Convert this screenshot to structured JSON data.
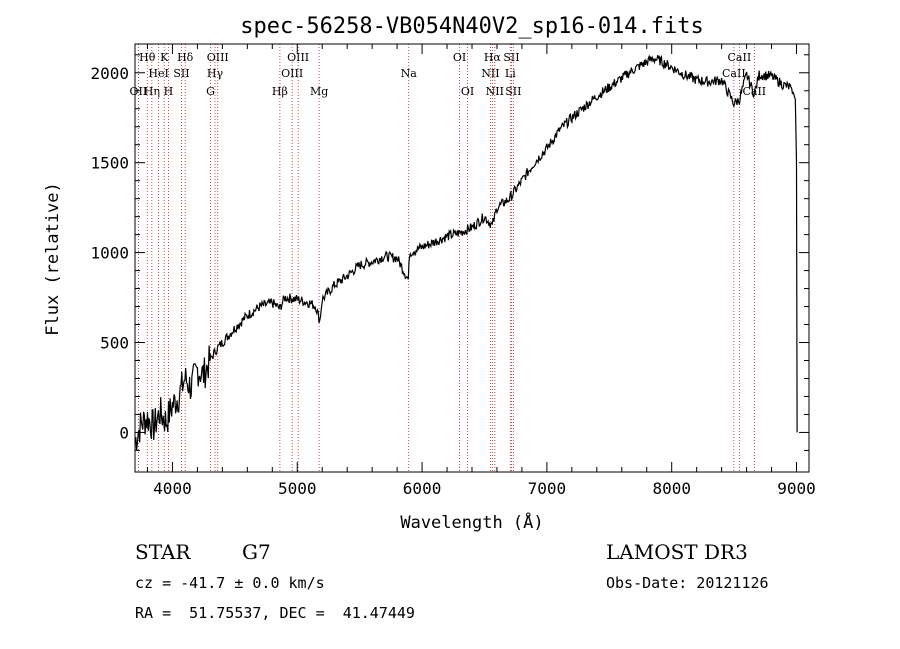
{
  "chart_data": {
    "type": "line",
    "title": "spec-56258-VB054N40V2_sp16-014.fits",
    "xlabel": "Wavelength (Å)",
    "ylabel": "Flux (relative)",
    "xlim": [
      3700,
      9100
    ],
    "ylim": [
      -220,
      2160
    ],
    "x_ticks": [
      4000,
      5000,
      6000,
      7000,
      8000,
      9000
    ],
    "y_ticks": [
      0,
      500,
      1000,
      1500,
      2000
    ],
    "x_tick_labels": [
      "4000",
      "5000",
      "6000",
      "7000",
      "8000",
      "9000"
    ],
    "y_tick_labels": [
      "0",
      "500",
      "1000",
      "1500",
      "2000"
    ],
    "line_color": "#000000",
    "marker_color": "#b22222",
    "series": [
      {
        "name": "flux",
        "x": [
          3700,
          3750,
          3800,
          3850,
          3900,
          3950,
          4000,
          4050,
          4100,
          4150,
          4200,
          4250,
          4300,
          4350,
          4400,
          4500,
          4600,
          4700,
          4800,
          4860,
          4900,
          5000,
          5100,
          5150,
          5180,
          5200,
          5300,
          5400,
          5500,
          5600,
          5700,
          5800,
          5890,
          5900,
          6000,
          6100,
          6200,
          6300,
          6400,
          6500,
          6563,
          6600,
          6700,
          6800,
          6900,
          7000,
          7100,
          7200,
          7300,
          7400,
          7500,
          7600,
          7700,
          7800,
          7850,
          7900,
          8000,
          8100,
          8200,
          8300,
          8400,
          8498,
          8542,
          8600,
          8662,
          8700,
          8800,
          8900,
          8950,
          8990,
          9000,
          9005
        ],
        "y": [
          -50,
          50,
          80,
          30,
          110,
          60,
          150,
          200,
          300,
          250,
          350,
          320,
          400,
          460,
          500,
          580,
          650,
          700,
          720,
          690,
          750,
          740,
          720,
          700,
          620,
          740,
          820,
          870,
          930,
          950,
          980,
          970,
          850,
          1000,
          1030,
          1060,
          1090,
          1110,
          1140,
          1200,
          1150,
          1250,
          1300,
          1400,
          1500,
          1580,
          1680,
          1750,
          1810,
          1870,
          1920,
          1970,
          2020,
          2060,
          2080,
          2070,
          2030,
          1990,
          1960,
          1950,
          1960,
          1830,
          1850,
          1990,
          1880,
          1990,
          1980,
          1930,
          1920,
          1860,
          1500,
          0
        ]
      }
    ],
    "spectral_lines": [
      {
        "name": "Hθ",
        "wave": 3798,
        "row": 1
      },
      {
        "name": "OII",
        "wave": 3727,
        "row": 3
      },
      {
        "name": "Hη",
        "wave": 3835,
        "row": 3
      },
      {
        "name": "HeI",
        "wave": 3889,
        "row": 2
      },
      {
        "name": "K",
        "wave": 3934,
        "row": 1
      },
      {
        "name": "H",
        "wave": 3968,
        "row": 3
      },
      {
        "name": "SII",
        "wave": 4072,
        "row": 2
      },
      {
        "name": "Hδ",
        "wave": 4102,
        "row": 1
      },
      {
        "name": "G",
        "wave": 4305,
        "row": 3
      },
      {
        "name": "Hγ",
        "wave": 4341,
        "row": 2
      },
      {
        "name": "OIII",
        "wave": 4363,
        "row": 1
      },
      {
        "name": "Hβ",
        "wave": 4861,
        "row": 3
      },
      {
        "name": "OIII",
        "wave": 4959,
        "row": 2
      },
      {
        "name": "OIII",
        "wave": 5007,
        "row": 1
      },
      {
        "name": "Mg",
        "wave": 5175,
        "row": 3
      },
      {
        "name": "Na",
        "wave": 5893,
        "row": 2
      },
      {
        "name": "OI",
        "wave": 6300,
        "row": 1
      },
      {
        "name": "OI",
        "wave": 6364,
        "row": 3
      },
      {
        "name": "NII",
        "wave": 6548,
        "row": 2
      },
      {
        "name": "Hα",
        "wave": 6563,
        "row": 1
      },
      {
        "name": "NII",
        "wave": 6583,
        "row": 3
      },
      {
        "name": "Li",
        "wave": 6707,
        "row": 2
      },
      {
        "name": "SII",
        "wave": 6716,
        "row": 1
      },
      {
        "name": "SII",
        "wave": 6731,
        "row": 3
      },
      {
        "name": "CaII",
        "wave": 8498,
        "row": 2
      },
      {
        "name": "CaII",
        "wave": 8542,
        "row": 1
      },
      {
        "name": "CaII",
        "wave": 8662,
        "row": 3
      }
    ]
  },
  "info": {
    "class": "STAR",
    "subclass": "G7",
    "survey": "LAMOST DR3",
    "redshift": "cz = -41.7 ± 0.0 km/s",
    "obs_date": "Obs-Date: 20121126",
    "coords": "RA =  51.75537, DEC =  41.47449"
  }
}
